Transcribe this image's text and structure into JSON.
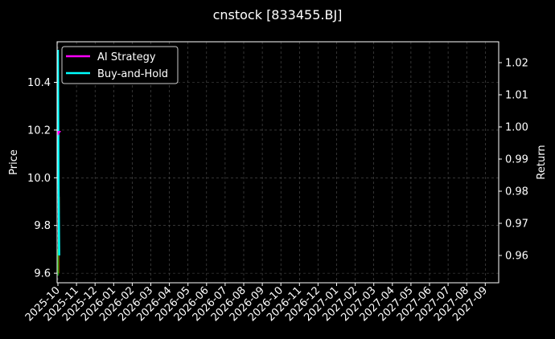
{
  "chart_data": {
    "type": "line",
    "title": "cnstock [833455.BJ]",
    "ylabel": "Price",
    "y2label": "Return",
    "ylim": [
      9.56,
      10.57
    ],
    "y2lim": [
      0.9515,
      1.0265
    ],
    "yticks": [
      "9.6",
      "9.8",
      "10.0",
      "10.2",
      "10.4"
    ],
    "y2ticks": [
      "0.96",
      "0.97",
      "0.98",
      "0.99",
      "1.00",
      "1.01",
      "1.02"
    ],
    "xticks": [
      "2025-10",
      "2025-11",
      "2025-12",
      "2026-01",
      "2026-02",
      "2026-03",
      "2026-04",
      "2026-05",
      "2026-06",
      "2026-07",
      "2026-08",
      "2026-09",
      "2026-10",
      "2026-11",
      "2026-12",
      "2027-01",
      "2027-02",
      "2027-03",
      "2027-04",
      "2027-05",
      "2027-06",
      "2027-07",
      "2027-08",
      "2027-09"
    ],
    "grid": true,
    "legend": "top-left",
    "series": [
      {
        "name": "AI Strategy",
        "color": "#ff00ff",
        "axis": "return",
        "values": [
          0.998,
          0.997
        ]
      },
      {
        "name": "Buy-and-Hold",
        "color": "#00ffff",
        "axis": "return",
        "values": [
          1.024,
          0.983,
          0.96
        ]
      }
    ],
    "candles": [
      {
        "open": 9.6,
        "close": 9.7,
        "high": 9.92,
        "low": 9.59,
        "color": "#00aa00"
      },
      {
        "open": 9.85,
        "close": 9.92,
        "high": 9.92,
        "low": 9.6,
        "color": "#aa5500"
      }
    ]
  }
}
